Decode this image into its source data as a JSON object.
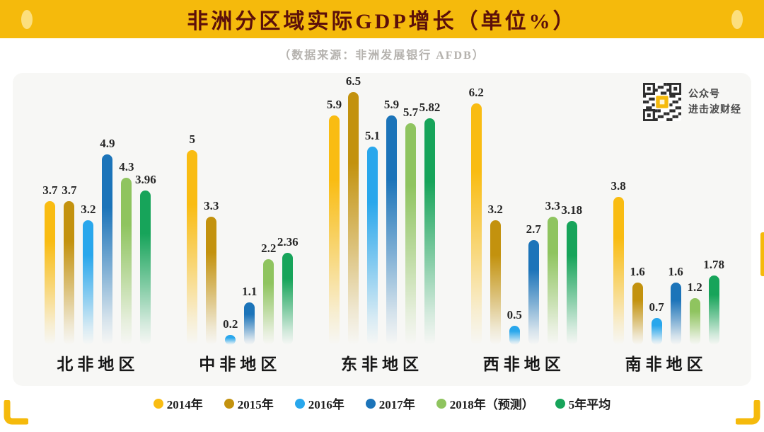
{
  "header": {
    "title": "非洲分区域实际GDP增长（单位%）"
  },
  "subtitle": "（数据来源：非洲发展银行 AFDB）",
  "qr": {
    "line1": "公众号",
    "line2": "进击波财经"
  },
  "chart_data": {
    "type": "bar",
    "title": "非洲分区域实际GDP增长（单位%）",
    "source": "非洲发展银行 AFDB",
    "categories": [
      "北非地区",
      "中非地区",
      "东非地区",
      "西非地区",
      "南非地区"
    ],
    "series": [
      {
        "name": "2014年",
        "color": "#F9BC12",
        "values": [
          3.7,
          5,
          5.9,
          6.2,
          3.8
        ]
      },
      {
        "name": "2015年",
        "color": "#C3920E",
        "values": [
          3.7,
          3.3,
          6.5,
          3.2,
          1.6
        ]
      },
      {
        "name": "2016年",
        "color": "#29A7EC",
        "values": [
          3.2,
          0.2,
          5.1,
          0.5,
          0.7
        ]
      },
      {
        "name": "2017年",
        "color": "#1C74B9",
        "values": [
          4.9,
          1.1,
          5.9,
          2.7,
          1.6
        ]
      },
      {
        "name": "2018年（预测）",
        "color": "#8FC45F",
        "values": [
          4.3,
          2.2,
          5.7,
          3.3,
          1.2
        ]
      },
      {
        "name": "5年平均",
        "color": "#17A45A",
        "values": [
          3.96,
          2.36,
          5.82,
          3.18,
          1.78
        ]
      }
    ],
    "ylim": [
      0,
      7
    ],
    "value_labels": true,
    "grid": false,
    "legend_position": "bottom",
    "bar_style": "rounded pill fading to transparent at baseline"
  },
  "theme": {
    "banner_yellow": "#F5BA0C",
    "banner_oval": "#FCDF7E",
    "title_red": "#5C100A",
    "card_bg": "#F7F7F5",
    "label_dark": "#262626"
  }
}
